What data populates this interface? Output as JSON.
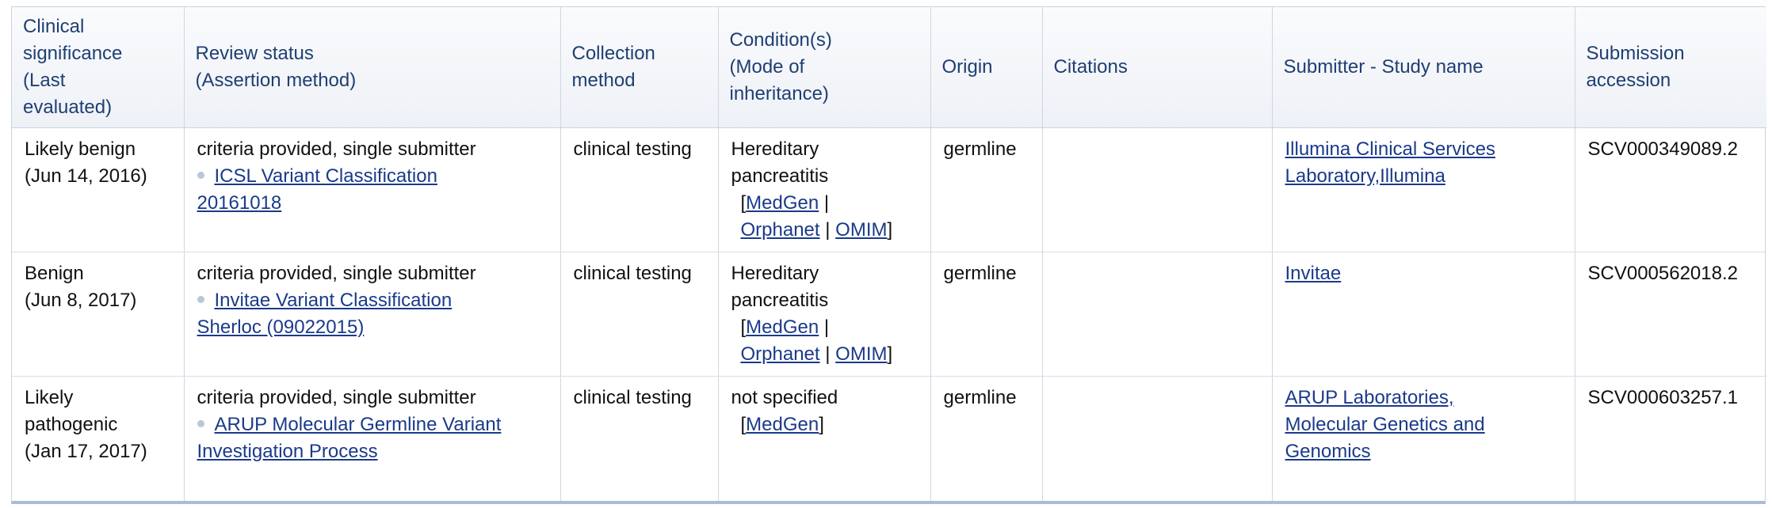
{
  "headers": {
    "clinical_significance": [
      "Clinical",
      "significance",
      "(Last",
      "evaluated)"
    ],
    "review_status": [
      "Review status",
      "(Assertion method)"
    ],
    "collection_method": [
      "Collection",
      "method"
    ],
    "conditions": [
      "Condition(s)",
      "(Mode of",
      "inheritance)"
    ],
    "origin": "Origin",
    "citations": "Citations",
    "submitter": "Submitter - Study name",
    "accession": [
      "Submission",
      "accession"
    ]
  },
  "rows": [
    {
      "significance": [
        "Likely benign",
        "(Jun 14, 2016)"
      ],
      "review_status": "criteria provided, single submitter",
      "assertion_method": [
        "ICSL Variant Classification",
        "20161018"
      ],
      "collection_method": "clinical testing",
      "condition": [
        "Hereditary",
        "pancreatitis"
      ],
      "refs": [
        "MedGen",
        "Orphanet",
        "OMIM"
      ],
      "origin": "germline",
      "citations": "",
      "submitter": [
        "Illumina Clinical Services",
        "Laboratory,Illumina"
      ],
      "accession": "SCV000349089.2"
    },
    {
      "significance": [
        "Benign",
        "(Jun 8, 2017)"
      ],
      "review_status": "criteria provided, single submitter",
      "assertion_method": [
        "Invitae Variant Classification",
        "Sherloc (09022015)"
      ],
      "collection_method": "clinical testing",
      "condition": [
        "Hereditary",
        "pancreatitis"
      ],
      "refs": [
        "MedGen",
        "Orphanet",
        "OMIM"
      ],
      "origin": "germline",
      "citations": "",
      "submitter": [
        "Invitae"
      ],
      "accession": "SCV000562018.2"
    },
    {
      "significance": [
        "Likely",
        "pathogenic",
        "(Jan 17, 2017)"
      ],
      "review_status": "criteria provided, single submitter",
      "assertion_method": [
        "ARUP Molecular Germline Variant",
        "Investigation Process"
      ],
      "collection_method": "clinical testing",
      "condition": [
        "not specified"
      ],
      "refs": [
        "MedGen"
      ],
      "origin": "germline",
      "citations": "",
      "submitter": [
        "ARUP Laboratories,",
        "Molecular Genetics and",
        "Genomics"
      ],
      "accession": "SCV000603257.1"
    }
  ],
  "colors": {
    "header_text": "#1f3f73",
    "link": "#1a3a8a",
    "border": "#d0d7e0"
  }
}
